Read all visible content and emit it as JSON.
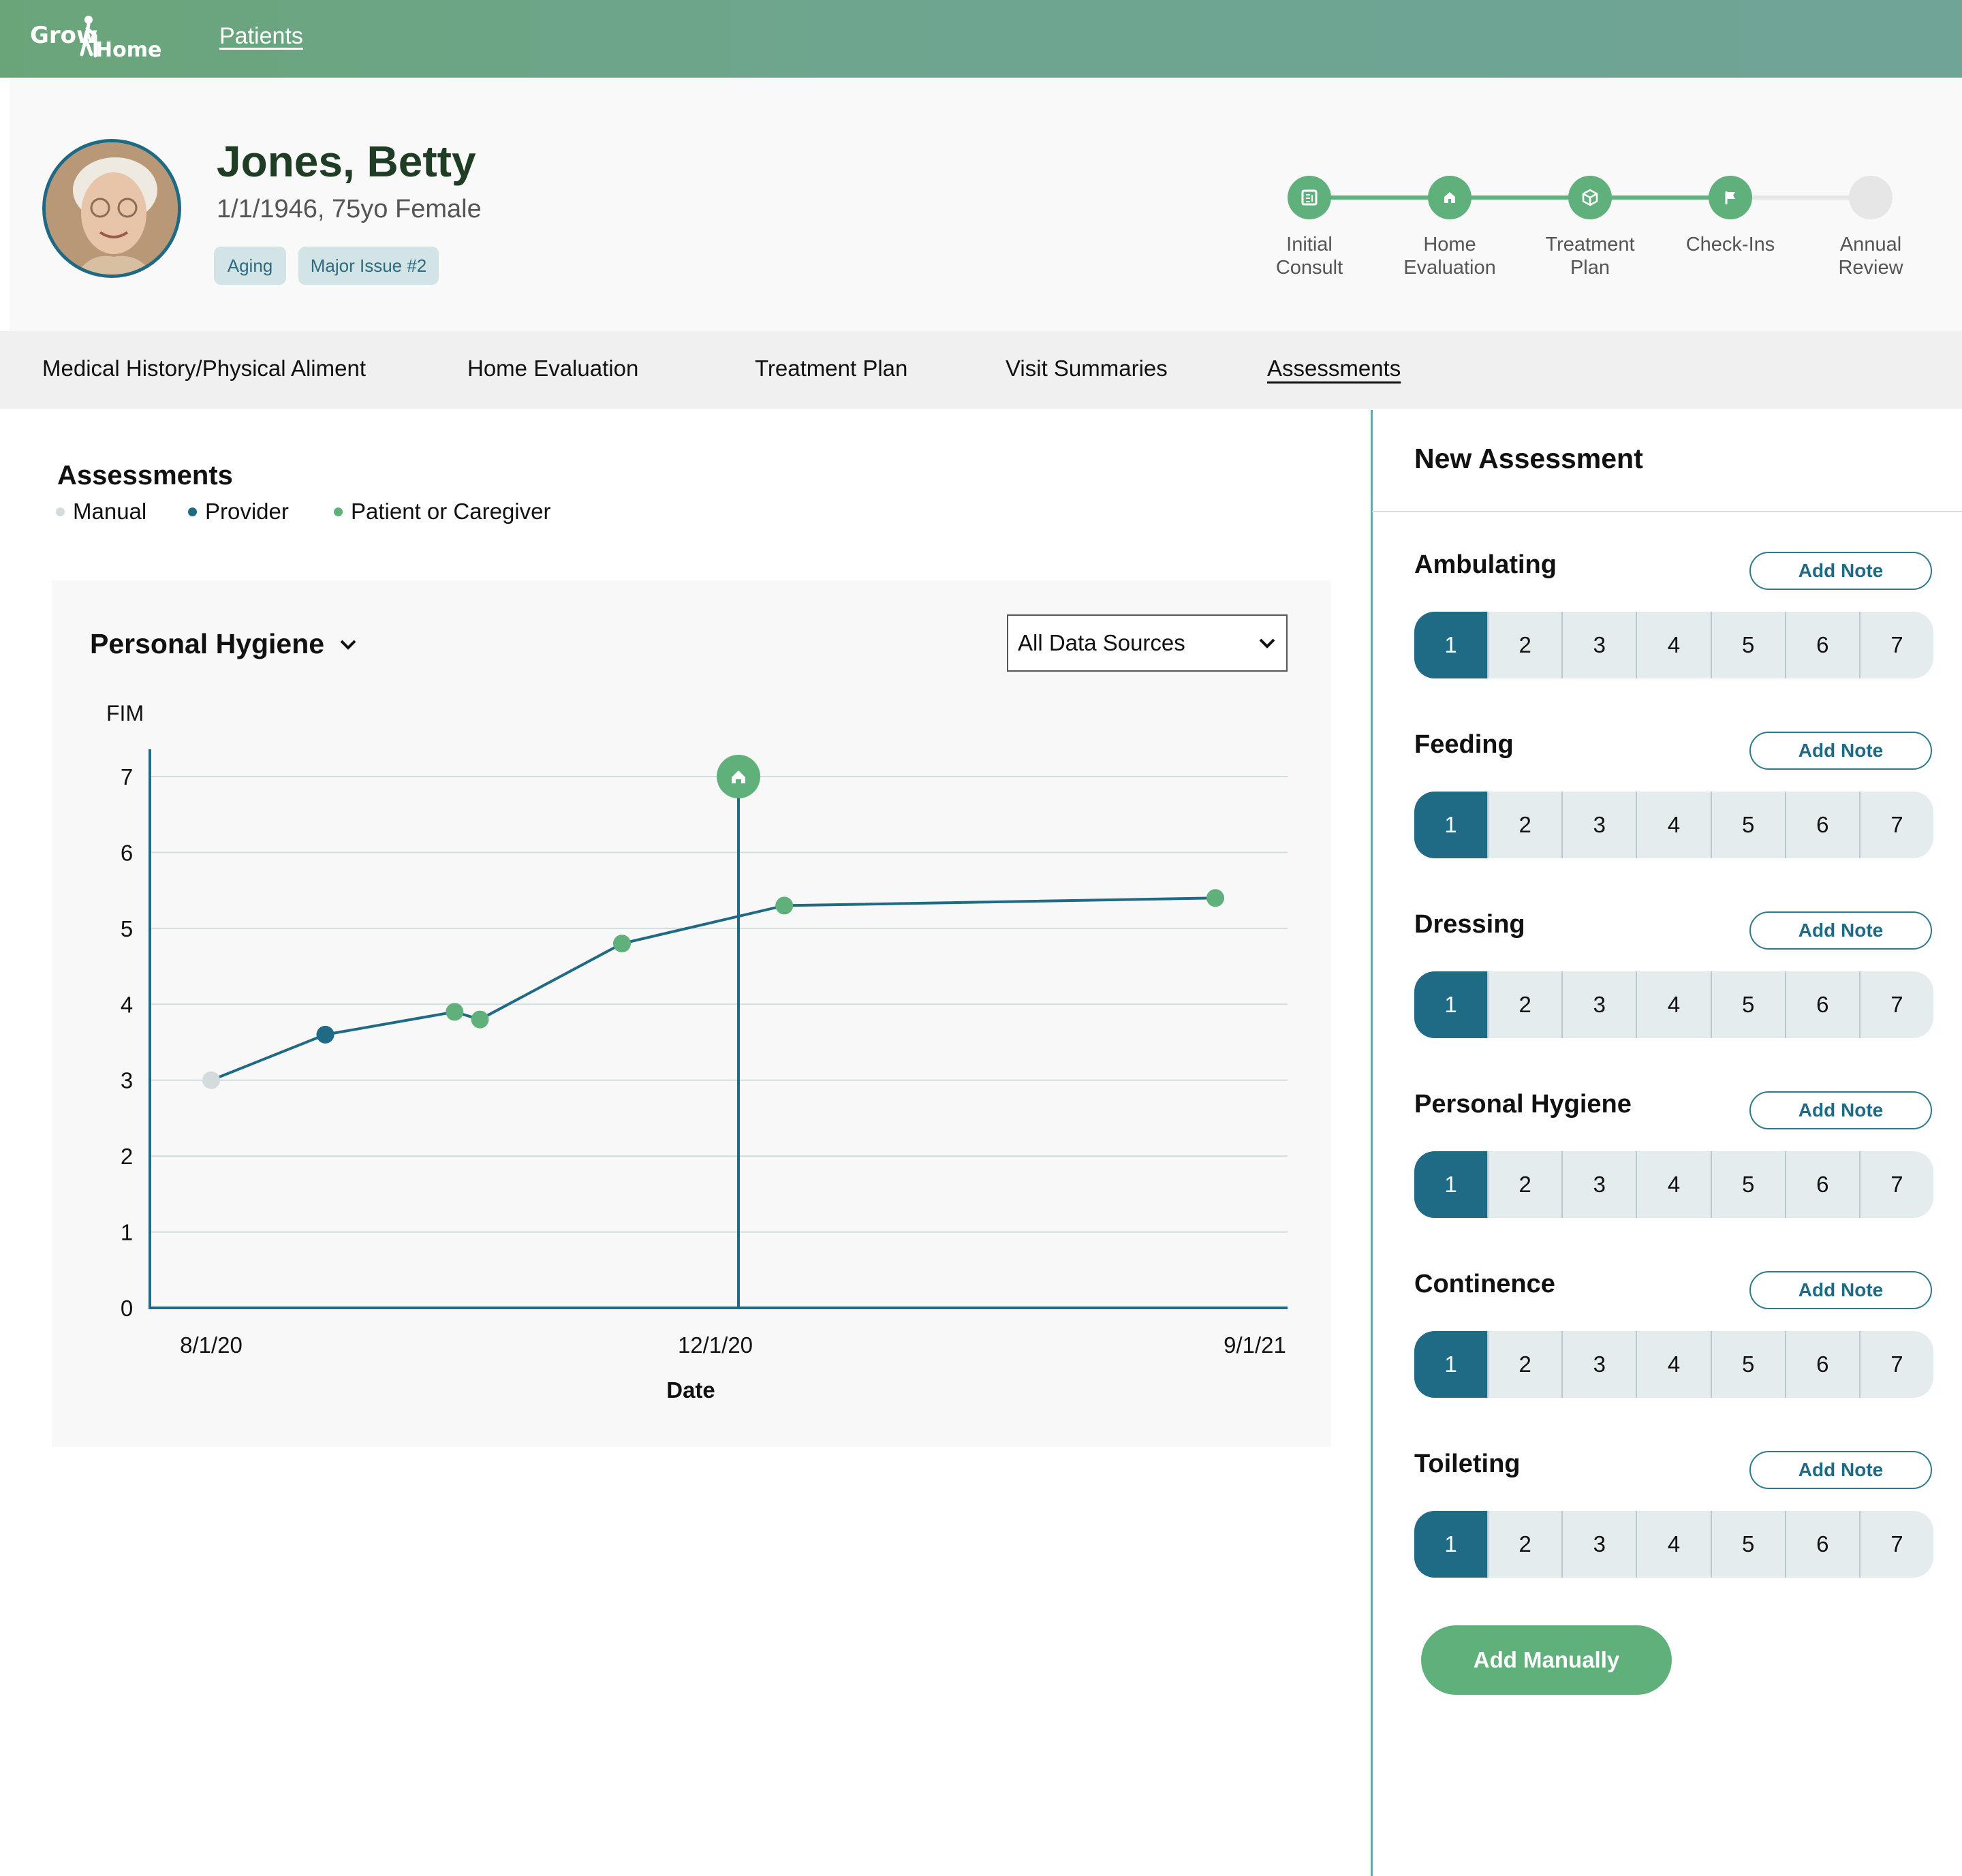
{
  "app": {
    "logo_text_1": "Grow",
    "logo_text_2": "Home",
    "nav_link": "Patients"
  },
  "patient": {
    "name": "Jones, Betty",
    "info": "1/1/1946, 75yo Female",
    "tags": [
      "Aging",
      "Major Issue #2"
    ]
  },
  "progress": {
    "steps": [
      {
        "label": "Initial\nConsult",
        "icon": "document-icon",
        "done": true
      },
      {
        "label": "Home\nEvaluation",
        "icon": "home-icon",
        "done": true
      },
      {
        "label": "Treatment\nPlan",
        "icon": "cube-icon",
        "done": true
      },
      {
        "label": "Check-Ins",
        "icon": "flag-icon",
        "done": true
      },
      {
        "label": "Annual\nReview",
        "icon": "none",
        "done": false
      }
    ]
  },
  "tabs": [
    "Medical History/Physical Aliment",
    "Home Evaluation",
    "Treatment Plan",
    "Visit Summaries",
    "Assessments"
  ],
  "assessments": {
    "title": "Assessments",
    "legend": [
      {
        "label": "Manual",
        "color": "#d3dbdc"
      },
      {
        "label": "Provider",
        "color": "#1f6a84"
      },
      {
        "label": "Patient or Caregiver",
        "color": "#5fb07a"
      }
    ],
    "metric": "Personal Hygiene",
    "source": "All Data Sources"
  },
  "chart_data": {
    "type": "line",
    "ylabel": "FIM",
    "xlabel": "Date",
    "ylim": [
      0,
      7
    ],
    "yticks": [
      0,
      1,
      2,
      3,
      4,
      5,
      6,
      7
    ],
    "xticks": [
      "8/1/20",
      "12/1/20",
      "9/1/21"
    ],
    "grid": true,
    "points": [
      {
        "date": "8/1/20",
        "value": 3.0,
        "source": "Manual"
      },
      {
        "date": "9/15/20",
        "value": 3.6,
        "source": "Provider"
      },
      {
        "date": "11/5/20",
        "value": 3.9,
        "source": "Patient or Caregiver"
      },
      {
        "date": "11/15/20",
        "value": 3.8,
        "source": "Patient or Caregiver"
      },
      {
        "date": "1/10/21",
        "value": 4.8,
        "source": "Patient or Caregiver"
      },
      {
        "date": "3/15/21",
        "value": 5.3,
        "source": "Patient or Caregiver"
      },
      {
        "date": "9/1/21",
        "value": 5.4,
        "source": "Patient or Caregiver"
      }
    ],
    "event_marker": {
      "date": "12/1/20",
      "icon": "home-icon"
    }
  },
  "new_assessment": {
    "title": "New Assessment",
    "note_label": "Add Note",
    "scores": [
      "1",
      "2",
      "3",
      "4",
      "5",
      "6",
      "7"
    ],
    "selected": "1",
    "categories": [
      "Ambulating",
      "Feeding",
      "Dressing",
      "Personal Hygiene",
      "Continence",
      "Toileting"
    ],
    "add_manually": "Add Manually"
  },
  "colors": {
    "accent_green": "#5fb07a",
    "accent_teal": "#1f6a84",
    "header_green": "#6aa57a"
  }
}
